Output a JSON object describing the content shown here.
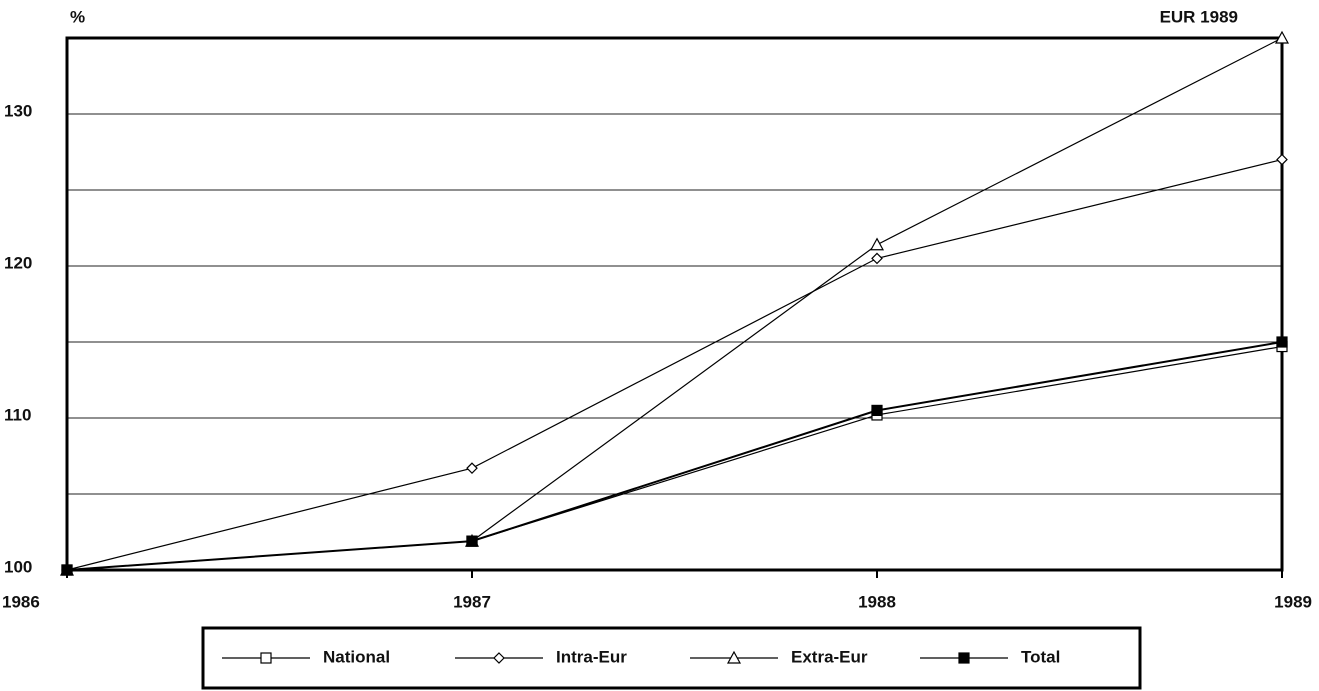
{
  "chart_data": {
    "type": "line",
    "y_axis_label": "%",
    "annotation": "EUR 1989",
    "x": [
      1986,
      1987,
      1988,
      1989
    ],
    "xlim": [
      1986,
      1989
    ],
    "xticks": [
      1986,
      1987,
      1988,
      1989
    ],
    "ylim": [
      100,
      135
    ],
    "yticks": [
      100,
      110,
      120,
      130
    ],
    "minor_yticks": [
      105,
      115,
      125
    ],
    "grid": true,
    "legend": "bottom",
    "series": [
      {
        "name": "National",
        "color": "#000000",
        "marker": "square-open",
        "values": [
          100,
          101.9,
          110.2,
          114.7
        ]
      },
      {
        "name": "Intra-Eur",
        "color": "#000000",
        "marker": "diamond-open",
        "values": [
          100,
          106.7,
          120.5,
          127.0
        ]
      },
      {
        "name": "Extra-Eur",
        "color": "#000000",
        "marker": "triangle-open",
        "values": [
          100,
          101.9,
          121.4,
          135
        ]
      },
      {
        "name": "Total",
        "color": "#000000",
        "marker": "square-filled",
        "values": [
          100,
          101.9,
          110.5,
          115.0
        ]
      }
    ]
  }
}
